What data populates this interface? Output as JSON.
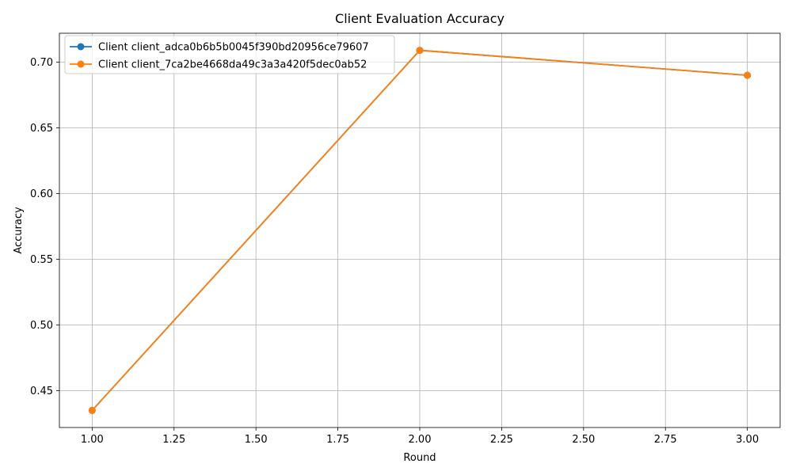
{
  "chart_data": {
    "type": "line",
    "title": "Client Evaluation Accuracy",
    "xlabel": "Round",
    "ylabel": "Accuracy",
    "xlim": [
      0.9,
      3.1
    ],
    "ylim": [
      0.422,
      0.722
    ],
    "xticks": [
      1.0,
      1.25,
      1.5,
      1.75,
      2.0,
      2.25,
      2.5,
      2.75,
      3.0
    ],
    "xtick_labels": [
      "1.00",
      "1.25",
      "1.50",
      "1.75",
      "2.00",
      "2.25",
      "2.50",
      "2.75",
      "3.00"
    ],
    "yticks": [
      0.45,
      0.5,
      0.55,
      0.6,
      0.65,
      0.7
    ],
    "ytick_labels": [
      "0.45",
      "0.50",
      "0.55",
      "0.60",
      "0.65",
      "0.70"
    ],
    "grid": true,
    "legend_position": "top-left",
    "series": [
      {
        "name": "Client client_adca0b6b5b0045f390bd20956ce79607",
        "color": "#1f77b4",
        "x": [
          1,
          2,
          3
        ],
        "y": [
          0.435,
          0.709,
          0.69
        ]
      },
      {
        "name": "Client client_7ca2be4668da49c3a3a420f5dec0ab52",
        "color": "#ff7f0e",
        "x": [
          1,
          2,
          3
        ],
        "y": [
          0.435,
          0.709,
          0.69
        ]
      }
    ]
  }
}
